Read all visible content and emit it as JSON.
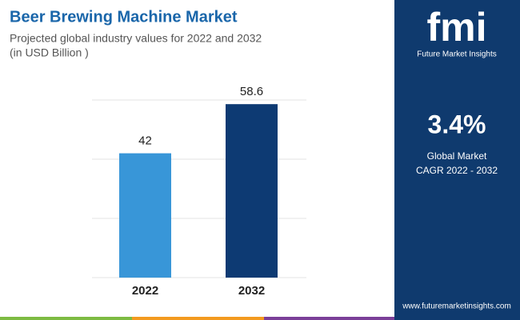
{
  "chart_data": {
    "type": "bar",
    "title": "Beer Brewing Machine Market",
    "subtitle": "Projected global industry values for 2022 and 2032",
    "unit_note": "(in USD Billion )",
    "categories": [
      "2022",
      "2032"
    ],
    "values": [
      42,
      58.6
    ],
    "colors": [
      "#3896d8",
      "#0d3a73"
    ],
    "ylim": [
      0,
      60
    ],
    "yticks": [
      0,
      20,
      40,
      60
    ],
    "grid": true
  },
  "sidebar": {
    "logo": "fmi",
    "brand": "Future Market Insights",
    "cagr": "3.4%",
    "cagr_label": [
      "Global Market",
      "CAGR 2022 - 2032"
    ],
    "website": "www.futuremarketinsights.com"
  }
}
